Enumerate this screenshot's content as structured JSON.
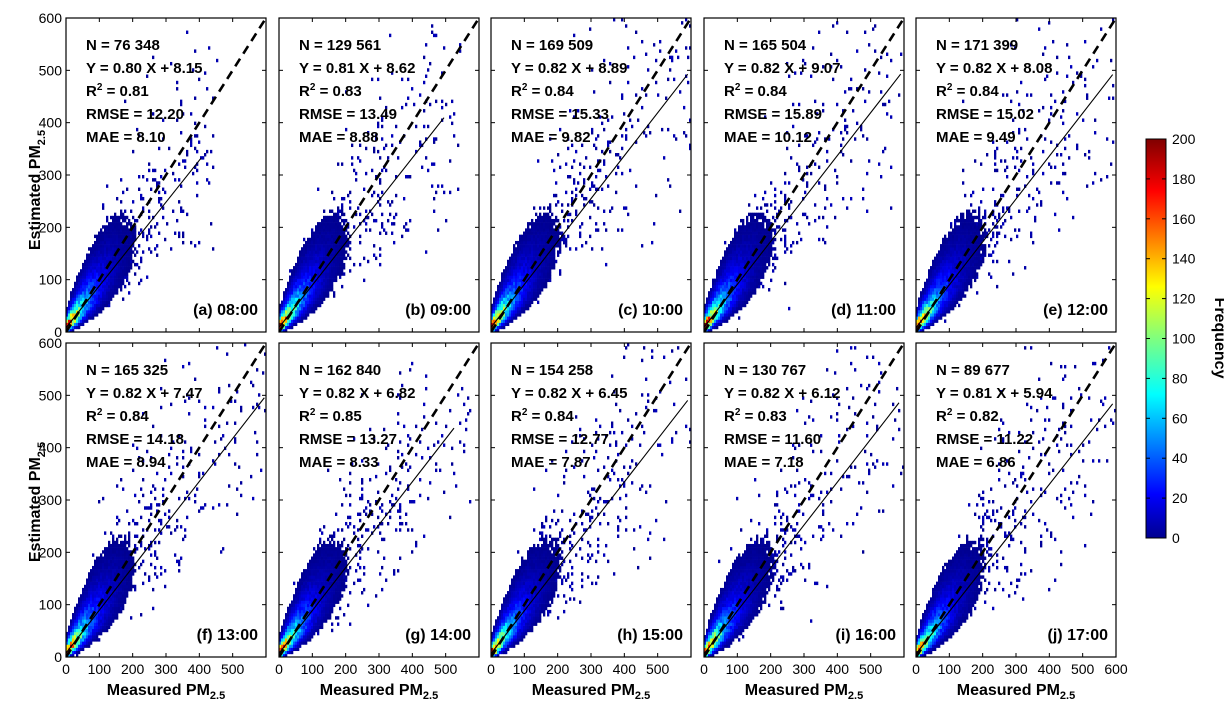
{
  "figure": {
    "y_axis_label": "Estimated PM",
    "x_axis_label": "Measured PM",
    "pm_subscript": "2.5",
    "colorbar_label": "Frequency"
  },
  "chart_data": {
    "type": "heatmap",
    "xlim": [
      0,
      600
    ],
    "ylim": [
      0,
      600
    ],
    "x_ticks": [
      0,
      100,
      200,
      300,
      400,
      500,
      600
    ],
    "y_ticks": [
      0,
      100,
      200,
      300,
      400,
      500,
      600
    ],
    "colorbar": {
      "label": "Frequency",
      "range": [
        0,
        200
      ],
      "ticks": [
        0,
        20,
        40,
        60,
        80,
        100,
        120,
        140,
        160,
        180,
        200
      ],
      "colormap": "jet"
    },
    "reference_line": "1:1 (dashed)",
    "panels": [
      {
        "label": "(a) 08:00",
        "n": "76 348",
        "fit": "Y = 0.80 X + 8.15",
        "slope": 0.8,
        "intercept": 8.15,
        "r2": "0.81",
        "rmse": "12.20",
        "mae": "8.10",
        "fit_x_max": 405
      },
      {
        "label": "(b) 09:00",
        "n": "129 561",
        "fit": "Y = 0.81 X + 8.62",
        "slope": 0.81,
        "intercept": 8.62,
        "r2": "0.83",
        "rmse": "13.49",
        "mae": "8.88",
        "fit_x_max": 495
      },
      {
        "label": "(c) 10:00",
        "n": "169 509",
        "fit": "Y = 0.82 X + 8.89",
        "slope": 0.82,
        "intercept": 8.89,
        "r2": "0.84",
        "rmse": "15.33",
        "mae": "9.82",
        "fit_x_max": 590
      },
      {
        "label": "(d) 11:00",
        "n": "165 504",
        "fit": "Y = 0.82 X + 9.07",
        "slope": 0.82,
        "intercept": 9.07,
        "r2": "0.84",
        "rmse": "15.89",
        "mae": "10.12",
        "fit_x_max": 590
      },
      {
        "label": "(e) 12:00",
        "n": "171 399",
        "fit": "Y = 0.82 X + 8.08",
        "slope": 0.82,
        "intercept": 8.08,
        "r2": "0.84",
        "rmse": "15.02",
        "mae": "9.49",
        "fit_x_max": 590
      },
      {
        "label": "(f) 13:00",
        "n": "165 325",
        "fit": "Y = 0.82 X + 7.47",
        "slope": 0.82,
        "intercept": 7.47,
        "r2": "0.84",
        "rmse": "14.18",
        "mae": "8.94",
        "fit_x_max": 595
      },
      {
        "label": "(g) 14:00",
        "n": "162 840",
        "fit": "Y = 0.82 X + 6.82",
        "slope": 0.82,
        "intercept": 6.82,
        "r2": "0.85",
        "rmse": "13.27",
        "mae": "8.33",
        "fit_x_max": 525
      },
      {
        "label": "(h) 15:00",
        "n": "154 258",
        "fit": "Y = 0.82 X + 6.45",
        "slope": 0.82,
        "intercept": 6.45,
        "r2": "0.84",
        "rmse": "12.77",
        "mae": "7.87",
        "fit_x_max": 590
      },
      {
        "label": "(i) 16:00",
        "n": "130 767",
        "fit": "Y = 0.82 X + 6.12",
        "slope": 0.82,
        "intercept": 6.12,
        "r2": "0.83",
        "rmse": "11.60",
        "mae": "7.18",
        "fit_x_max": 585
      },
      {
        "label": "(j) 17:00",
        "n": "89 677",
        "fit": "Y = 0.81 X + 5.94",
        "slope": 0.81,
        "intercept": 5.94,
        "r2": "0.82",
        "rmse": "11.22",
        "mae": "6.86",
        "fit_x_max": 590
      }
    ]
  }
}
